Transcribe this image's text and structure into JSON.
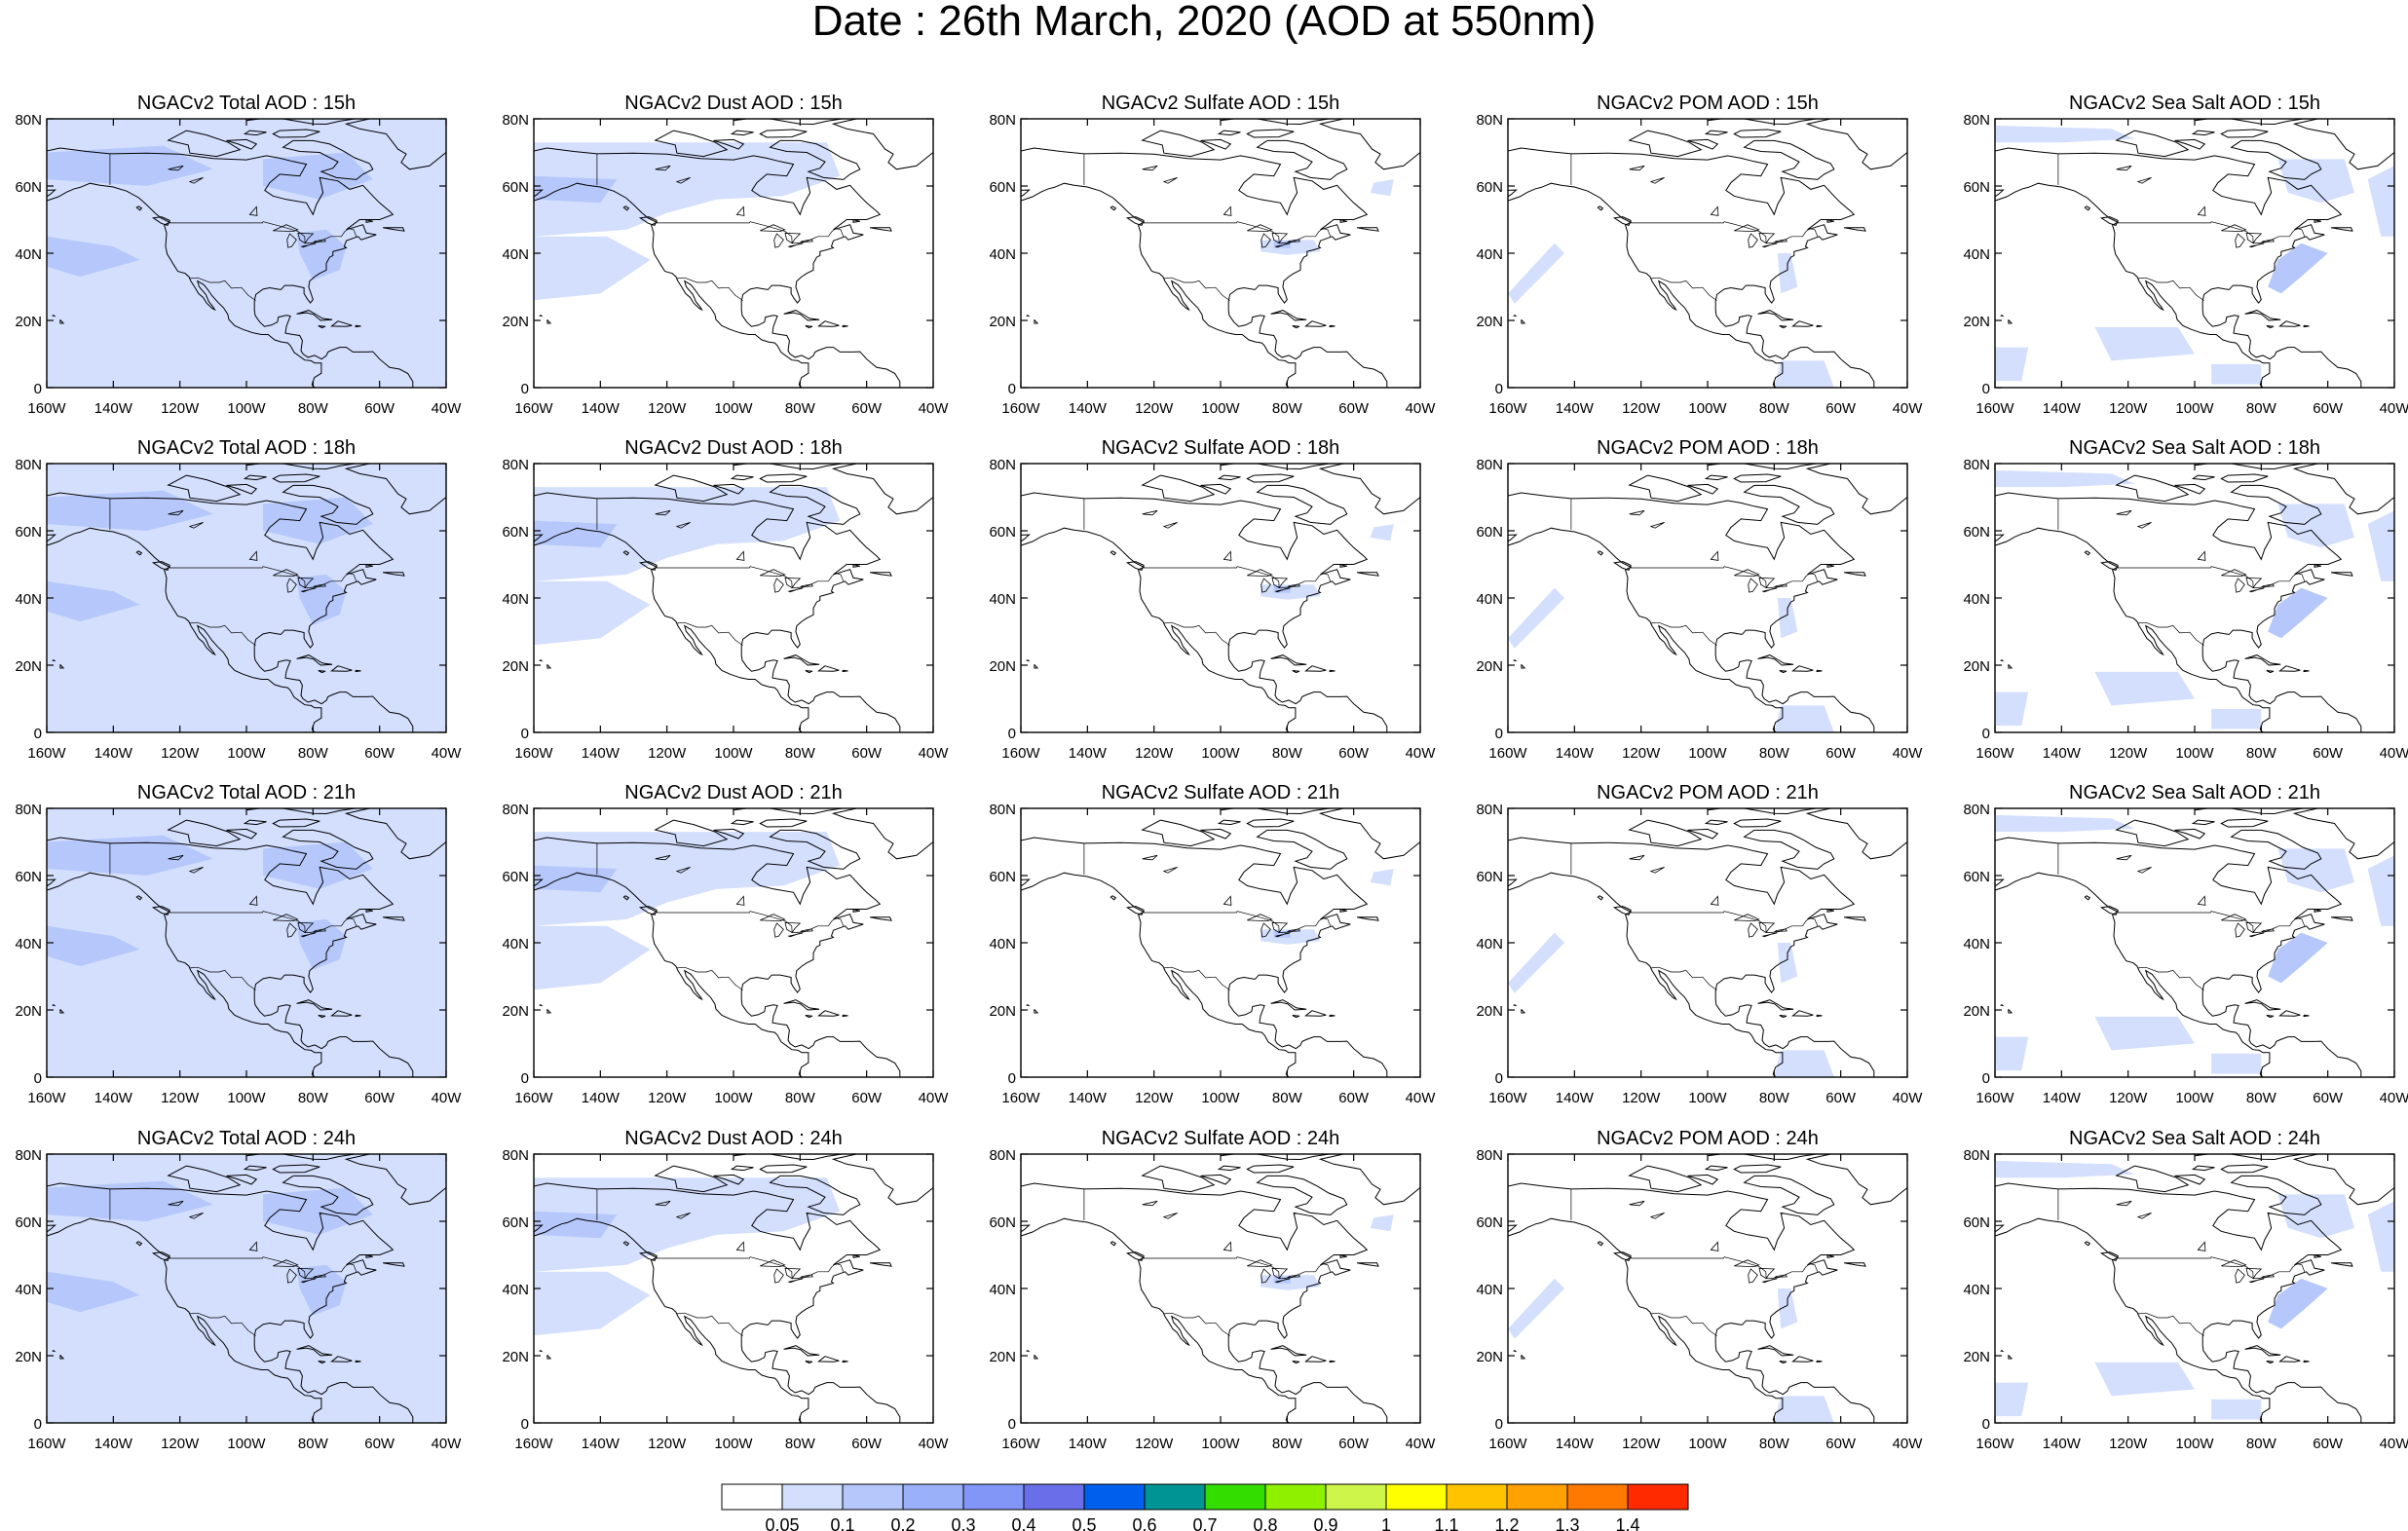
{
  "title": "Date : 26th March, 2020 (AOD at 550nm)",
  "panels": [
    [
      "NGACv2 Total AOD : 15h",
      "NGACv2 Dust AOD : 15h",
      "NGACv2 Sulfate AOD : 15h",
      "NGACv2 POM AOD : 15h",
      "NGACv2 Sea Salt AOD : 15h"
    ],
    [
      "NGACv2 Total AOD : 18h",
      "NGACv2 Dust AOD : 18h",
      "NGACv2 Sulfate AOD : 18h",
      "NGACv2 POM AOD : 18h",
      "NGACv2 Sea Salt AOD : 18h"
    ],
    [
      "NGACv2 Total AOD : 21h",
      "NGACv2 Dust AOD : 21h",
      "NGACv2 Sulfate AOD : 21h",
      "NGACv2 POM AOD : 21h",
      "NGACv2 Sea Salt AOD : 21h"
    ],
    [
      "NGACv2 Total AOD : 24h",
      "NGACv2 Dust AOD : 24h",
      "NGACv2 Sulfate AOD : 24h",
      "NGACv2 POM AOD : 24h",
      "NGACv2 Sea Salt  AOD : 24h"
    ]
  ],
  "panel_species": [
    "total",
    "dust",
    "sulfate",
    "pom",
    "seasalt"
  ],
  "lat_ticks": [
    "80N",
    "60N",
    "40N",
    "20N",
    "0"
  ],
  "lat_values": [
    80,
    60,
    40,
    20,
    0
  ],
  "lon_ticks": [
    "160W",
    "140W",
    "120W",
    "100W",
    "80W",
    "60W",
    "40W"
  ],
  "lon_values": [
    -160,
    -140,
    -120,
    -100,
    -80,
    -60,
    -40
  ],
  "map_extent": {
    "lon": [
      -160,
      -40
    ],
    "lat": [
      0,
      80
    ]
  },
  "colorbar": {
    "labels": [
      "0.05",
      "0.1",
      "0.2",
      "0.3",
      "0.4",
      "0.5",
      "0.6",
      "0.7",
      "0.8",
      "0.9",
      "1",
      "1.1",
      "1.2",
      "1.3",
      "1.4"
    ],
    "colors": [
      "#ffffff",
      "#d3dffd",
      "#b6c8fb",
      "#9ab1f9",
      "#8196f6",
      "#6a6fe9",
      "#0060ee",
      "#009494",
      "#33dd00",
      "#8ff000",
      "#cdf54a",
      "#ffff00",
      "#ffc300",
      "#ffa100",
      "#ff7800",
      "#ff2a00"
    ]
  },
  "fill_colors": {
    "low": "#d3dffd",
    "mid": "#b6c8fb"
  },
  "line_color": "#000000"
}
